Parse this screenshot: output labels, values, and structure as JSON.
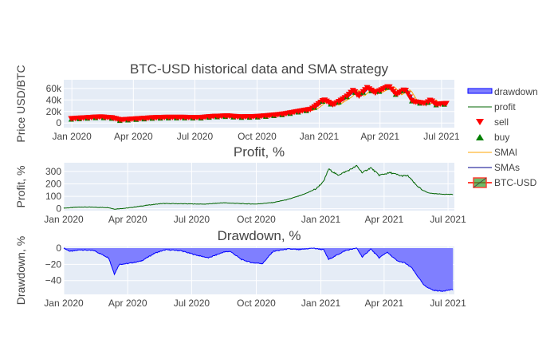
{
  "chart_data": [
    {
      "type": "candlestick",
      "title": "BTC-USD historical data and SMA strategy",
      "ylabel": "Price USD/BTC",
      "ylim": [
        -8000,
        75000
      ],
      "xlim": [
        "2019-12-20",
        "2021-07-20"
      ],
      "x_ticks": [
        {
          "date": "2020-01-01",
          "label": "Jan 2020"
        },
        {
          "date": "2020-04-01",
          "label": "Apr 2020"
        },
        {
          "date": "2020-07-01",
          "label": "Jul 2020"
        },
        {
          "date": "2020-10-01",
          "label": "Oct 2020"
        },
        {
          "date": "2021-01-01",
          "label": "Jan 2021"
        },
        {
          "date": "2021-04-01",
          "label": "Apr 2021"
        },
        {
          "date": "2021-07-01",
          "label": "Jul 2021"
        }
      ],
      "y_ticks": [
        {
          "value": 0,
          "label": "0"
        },
        {
          "value": 20000,
          "label": "20k"
        },
        {
          "value": 40000,
          "label": "40k"
        },
        {
          "value": 60000,
          "label": "60k"
        }
      ],
      "series": [
        {
          "name": "BTC-USD",
          "color": "#ff0000",
          "points": [
            [
              "2019-12-31",
              7200
            ],
            [
              "2020-01-20",
              8600
            ],
            [
              "2020-02-12",
              10300
            ],
            [
              "2020-03-01",
              8600
            ],
            [
              "2020-03-12",
              5000
            ],
            [
              "2020-03-31",
              6400
            ],
            [
              "2020-04-29",
              8700
            ],
            [
              "2020-05-20",
              9500
            ],
            [
              "2020-06-15",
              9400
            ],
            [
              "2020-07-10",
              9250
            ],
            [
              "2020-07-28",
              11000
            ],
            [
              "2020-08-18",
              12000
            ],
            [
              "2020-09-05",
              10200
            ],
            [
              "2020-09-30",
              10800
            ],
            [
              "2020-10-21",
              12800
            ],
            [
              "2020-11-10",
              15300
            ],
            [
              "2020-11-30",
              19500
            ],
            [
              "2020-12-20",
              23500
            ],
            [
              "2021-01-08",
              40000
            ],
            [
              "2021-01-22",
              31000
            ],
            [
              "2021-02-10",
              45000
            ],
            [
              "2021-02-21",
              57000
            ],
            [
              "2021-02-28",
              45500
            ],
            [
              "2021-03-13",
              61000
            ],
            [
              "2021-03-25",
              52000
            ],
            [
              "2021-04-14",
              63500
            ],
            [
              "2021-04-25",
              49000
            ],
            [
              "2021-05-08",
              58000
            ],
            [
              "2021-05-19",
              37000
            ],
            [
              "2021-06-08",
              33500
            ],
            [
              "2021-06-15",
              40000
            ],
            [
              "2021-06-22",
              32000
            ],
            [
              "2021-07-08",
              33500
            ]
          ]
        }
      ],
      "markers": {
        "sell_color": "#ff0000",
        "buy_color": "#008000"
      }
    },
    {
      "type": "line",
      "title": "Profit, %",
      "ylabel": "Profit, %",
      "ylim": [
        -15,
        370
      ],
      "xlim": [
        "2020-01-01",
        "2021-07-10"
      ],
      "x_ticks": [
        {
          "date": "2020-01-01",
          "label": "Jan 2020"
        },
        {
          "date": "2020-04-01",
          "label": "Apr 2020"
        },
        {
          "date": "2020-07-01",
          "label": "Jul 2020"
        },
        {
          "date": "2020-10-01",
          "label": "Oct 2020"
        },
        {
          "date": "2021-01-01",
          "label": "Jan 2021"
        },
        {
          "date": "2021-04-01",
          "label": "Apr 2021"
        },
        {
          "date": "2021-07-01",
          "label": "Jul 2021"
        }
      ],
      "y_ticks": [
        {
          "value": 0,
          "label": "0"
        },
        {
          "value": 100,
          "label": "100"
        },
        {
          "value": 200,
          "label": "200"
        },
        {
          "value": 300,
          "label": "300"
        }
      ],
      "series": [
        {
          "name": "profit",
          "color": "#006400",
          "points": [
            [
              "2020-01-01",
              5
            ],
            [
              "2020-01-25",
              14
            ],
            [
              "2020-02-15",
              12
            ],
            [
              "2020-03-05",
              9
            ],
            [
              "2020-03-13",
              -3
            ],
            [
              "2020-04-01",
              6
            ],
            [
              "2020-05-01",
              30
            ],
            [
              "2020-05-20",
              42
            ],
            [
              "2020-06-20",
              40
            ],
            [
              "2020-07-20",
              37
            ],
            [
              "2020-08-15",
              48
            ],
            [
              "2020-09-15",
              40
            ],
            [
              "2020-10-01",
              38
            ],
            [
              "2020-10-25",
              50
            ],
            [
              "2020-11-15",
              75
            ],
            [
              "2020-12-05",
              110
            ],
            [
              "2020-12-25",
              160
            ],
            [
              "2021-01-05",
              220
            ],
            [
              "2021-01-12",
              320
            ],
            [
              "2021-01-25",
              270
            ],
            [
              "2021-02-10",
              310
            ],
            [
              "2021-02-21",
              345
            ],
            [
              "2021-03-01",
              290
            ],
            [
              "2021-03-13",
              330
            ],
            [
              "2021-03-25",
              270
            ],
            [
              "2021-04-10",
              290
            ],
            [
              "2021-04-25",
              265
            ],
            [
              "2021-05-05",
              265
            ],
            [
              "2021-05-15",
              200
            ],
            [
              "2021-05-25",
              150
            ],
            [
              "2021-06-05",
              125
            ],
            [
              "2021-06-20",
              118
            ],
            [
              "2021-07-08",
              115
            ]
          ]
        }
      ]
    },
    {
      "type": "area",
      "title": "Drawdown, %",
      "ylabel": "Drawdown, %",
      "ylim": [
        -57,
        2
      ],
      "xlim": [
        "2020-01-01",
        "2021-07-10"
      ],
      "x_ticks": [
        {
          "date": "2020-01-01",
          "label": "Jan 2020"
        },
        {
          "date": "2020-04-01",
          "label": "Apr 2020"
        },
        {
          "date": "2020-07-01",
          "label": "Jul 2020"
        },
        {
          "date": "2020-10-01",
          "label": "Oct 2020"
        },
        {
          "date": "2021-01-01",
          "label": "Jan 2021"
        },
        {
          "date": "2021-04-01",
          "label": "Apr 2021"
        },
        {
          "date": "2021-07-01",
          "label": "Jul 2021"
        }
      ],
      "y_ticks": [
        {
          "value": 0,
          "label": "0"
        },
        {
          "value": -20,
          "label": "−20"
        },
        {
          "value": -40,
          "label": "−40"
        }
      ],
      "series": [
        {
          "name": "drawdown",
          "color": "#0000ff",
          "fill": "#7f7fff",
          "points": [
            [
              "2020-01-01",
              0
            ],
            [
              "2020-01-10",
              -4
            ],
            [
              "2020-01-25",
              -2
            ],
            [
              "2020-02-13",
              -3
            ],
            [
              "2020-03-05",
              -12
            ],
            [
              "2020-03-13",
              -32
            ],
            [
              "2020-03-20",
              -20
            ],
            [
              "2020-04-01",
              -19
            ],
            [
              "2020-04-20",
              -16
            ],
            [
              "2020-05-10",
              -6
            ],
            [
              "2020-05-25",
              -2
            ],
            [
              "2020-06-15",
              -3
            ],
            [
              "2020-07-05",
              -8
            ],
            [
              "2020-07-25",
              -12
            ],
            [
              "2020-08-15",
              -5
            ],
            [
              "2020-08-25",
              -4
            ],
            [
              "2020-09-10",
              -14
            ],
            [
              "2020-09-25",
              -18
            ],
            [
              "2020-10-10",
              -19
            ],
            [
              "2020-10-25",
              -4
            ],
            [
              "2020-11-15",
              -1
            ],
            [
              "2020-12-01",
              -2
            ],
            [
              "2020-12-20",
              0
            ],
            [
              "2021-01-05",
              -2
            ],
            [
              "2021-01-12",
              -14
            ],
            [
              "2021-01-25",
              -8
            ],
            [
              "2021-02-05",
              -3
            ],
            [
              "2021-02-21",
              0
            ],
            [
              "2021-03-01",
              -11
            ],
            [
              "2021-03-13",
              -1
            ],
            [
              "2021-03-25",
              -12
            ],
            [
              "2021-04-05",
              -5
            ],
            [
              "2021-04-20",
              -16
            ],
            [
              "2021-04-30",
              -18
            ],
            [
              "2021-05-10",
              -24
            ],
            [
              "2021-05-19",
              -35
            ],
            [
              "2021-05-28",
              -46
            ],
            [
              "2021-06-10",
              -52
            ],
            [
              "2021-06-22",
              -53
            ],
            [
              "2021-07-08",
              -51
            ]
          ]
        }
      ]
    }
  ],
  "legend": [
    {
      "name": "drawdown",
      "kind": "fill",
      "color": "#0000ff",
      "fill": "#7f7fff"
    },
    {
      "name": "profit",
      "kind": "line",
      "color": "#006400"
    },
    {
      "name": "sell",
      "kind": "triangle-down",
      "color": "#ff0000"
    },
    {
      "name": "buy",
      "kind": "triangle-up",
      "color": "#008000"
    },
    {
      "name": "SMAl",
      "kind": "line",
      "color": "#ffa500"
    },
    {
      "name": "SMAs",
      "kind": "line",
      "color": "#00008b"
    },
    {
      "name": "BTC-USD",
      "kind": "candle",
      "color": "#ff4136",
      "fill": "#2ca02c"
    }
  ]
}
